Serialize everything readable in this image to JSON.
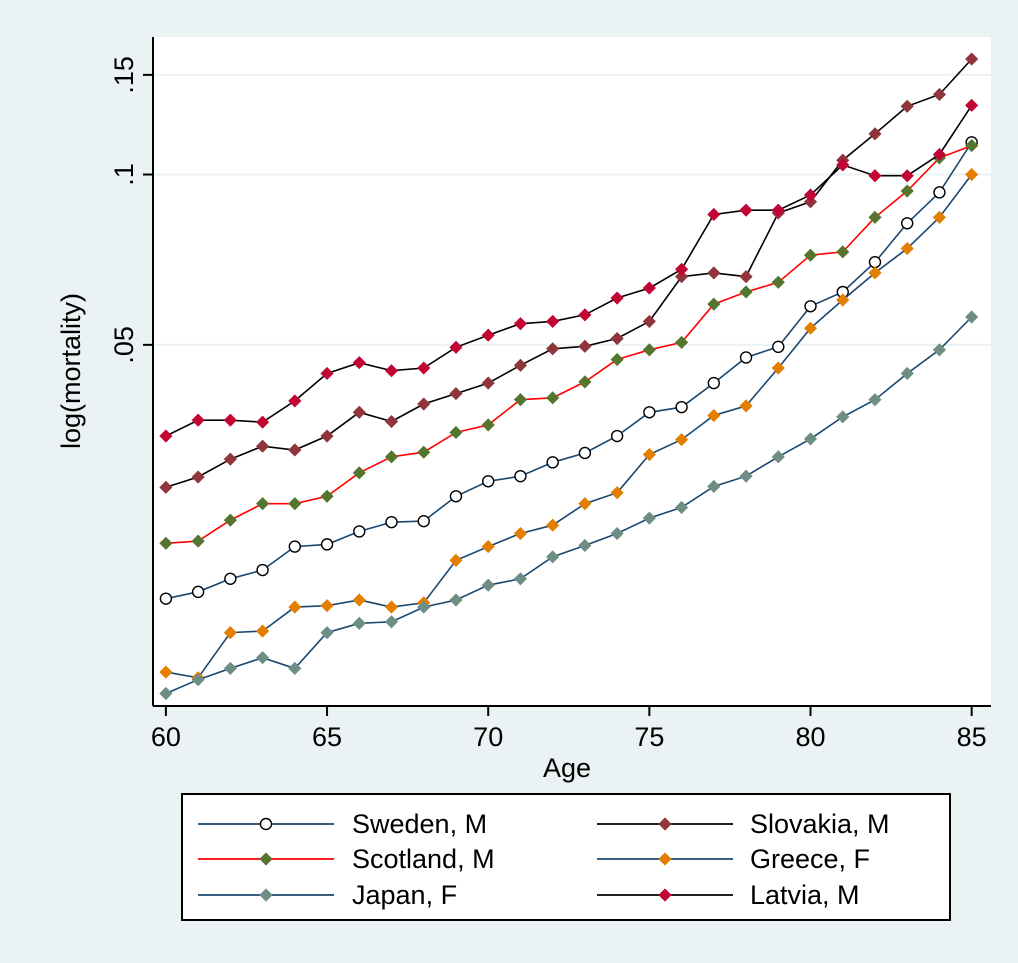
{
  "chart_data": {
    "type": "line",
    "title": "",
    "xlabel": "Age",
    "ylabel": "log(mortality)",
    "y_scale": "log",
    "grid": true,
    "legend_position": "bottom",
    "xlim": [
      59.6,
      85.6
    ],
    "ylim": [
      0.0115,
      0.175
    ],
    "x_ticks": [
      60,
      65,
      70,
      75,
      80,
      85
    ],
    "x_tick_labels": [
      "60",
      "65",
      "70",
      "75",
      "80",
      "85"
    ],
    "y_ticks": [
      0.05,
      0.1,
      0.15
    ],
    "y_tick_labels": [
      ".05",
      ".1",
      ".15"
    ],
    "x": [
      60,
      61,
      62,
      63,
      64,
      65,
      66,
      67,
      68,
      69,
      70,
      71,
      72,
      73,
      74,
      75,
      76,
      77,
      78,
      79,
      80,
      81,
      82,
      83,
      84,
      85
    ],
    "series": [
      {
        "name": "Sweden, M",
        "line_color": "#1a476f",
        "marker": "circle",
        "marker_color": "#ffffff",
        "values": [
          0.0178,
          0.0183,
          0.0193,
          0.02,
          0.022,
          0.0222,
          0.0234,
          0.0243,
          0.0244,
          0.027,
          0.0287,
          0.0293,
          0.031,
          0.0322,
          0.0345,
          0.038,
          0.0388,
          0.0428,
          0.0475,
          0.0496,
          0.0585,
          0.062,
          0.07,
          0.082,
          0.093,
          0.114
        ]
      },
      {
        "name": "Slovakia, M",
        "line_color": "#000000",
        "marker": "diamond",
        "marker_color": "#90353b",
        "values": [
          0.028,
          0.0292,
          0.0314,
          0.0331,
          0.0326,
          0.0345,
          0.038,
          0.0366,
          0.0393,
          0.041,
          0.0428,
          0.046,
          0.0492,
          0.0497,
          0.0513,
          0.055,
          0.066,
          0.067,
          0.066,
          0.0855,
          0.0895,
          0.106,
          0.118,
          0.132,
          0.1385,
          0.16
        ]
      },
      {
        "name": "Scotland, M",
        "line_color": "#ff0000",
        "marker": "diamond",
        "marker_color": "#55752f",
        "values": [
          0.0223,
          0.0225,
          0.0245,
          0.0262,
          0.0262,
          0.027,
          0.0297,
          0.0317,
          0.0323,
          0.035,
          0.0361,
          0.04,
          0.0403,
          0.043,
          0.0471,
          0.049,
          0.0505,
          0.059,
          0.062,
          0.0645,
          0.072,
          0.073,
          0.084,
          0.0935,
          0.107,
          0.1125
        ]
      },
      {
        "name": "Greece, F",
        "line_color": "#1a476f",
        "marker": "diamond",
        "marker_color": "#e37e00",
        "values": [
          0.0132,
          0.0129,
          0.0155,
          0.0156,
          0.0172,
          0.0173,
          0.0177,
          0.0172,
          0.0175,
          0.0208,
          0.022,
          0.0232,
          0.024,
          0.0262,
          0.0274,
          0.032,
          0.034,
          0.0375,
          0.039,
          0.0455,
          0.0535,
          0.06,
          0.067,
          0.074,
          0.084,
          0.1
        ]
      },
      {
        "name": "Japan, F",
        "line_color": "#1a476f",
        "marker": "diamond",
        "marker_color": "#6e8e84",
        "values": [
          0.0121,
          0.0128,
          0.0134,
          0.014,
          0.0134,
          0.0155,
          0.0161,
          0.0162,
          0.0172,
          0.0177,
          0.0188,
          0.0193,
          0.0211,
          0.0221,
          0.0232,
          0.0247,
          0.0258,
          0.0281,
          0.0293,
          0.0317,
          0.0341,
          0.0373,
          0.04,
          0.0445,
          0.049,
          0.056
        ]
      },
      {
        "name": "Latvia, M",
        "line_color": "#000000",
        "marker": "diamond",
        "marker_color": "#c10534",
        "values": [
          0.0345,
          0.0368,
          0.0368,
          0.0365,
          0.0398,
          0.0445,
          0.0465,
          0.045,
          0.0455,
          0.0495,
          0.052,
          0.0545,
          0.055,
          0.0565,
          0.0605,
          0.063,
          0.068,
          0.085,
          0.0865,
          0.0865,
          0.092,
          0.104,
          0.0995,
          0.0995,
          0.1085,
          0.1325
        ]
      }
    ]
  }
}
